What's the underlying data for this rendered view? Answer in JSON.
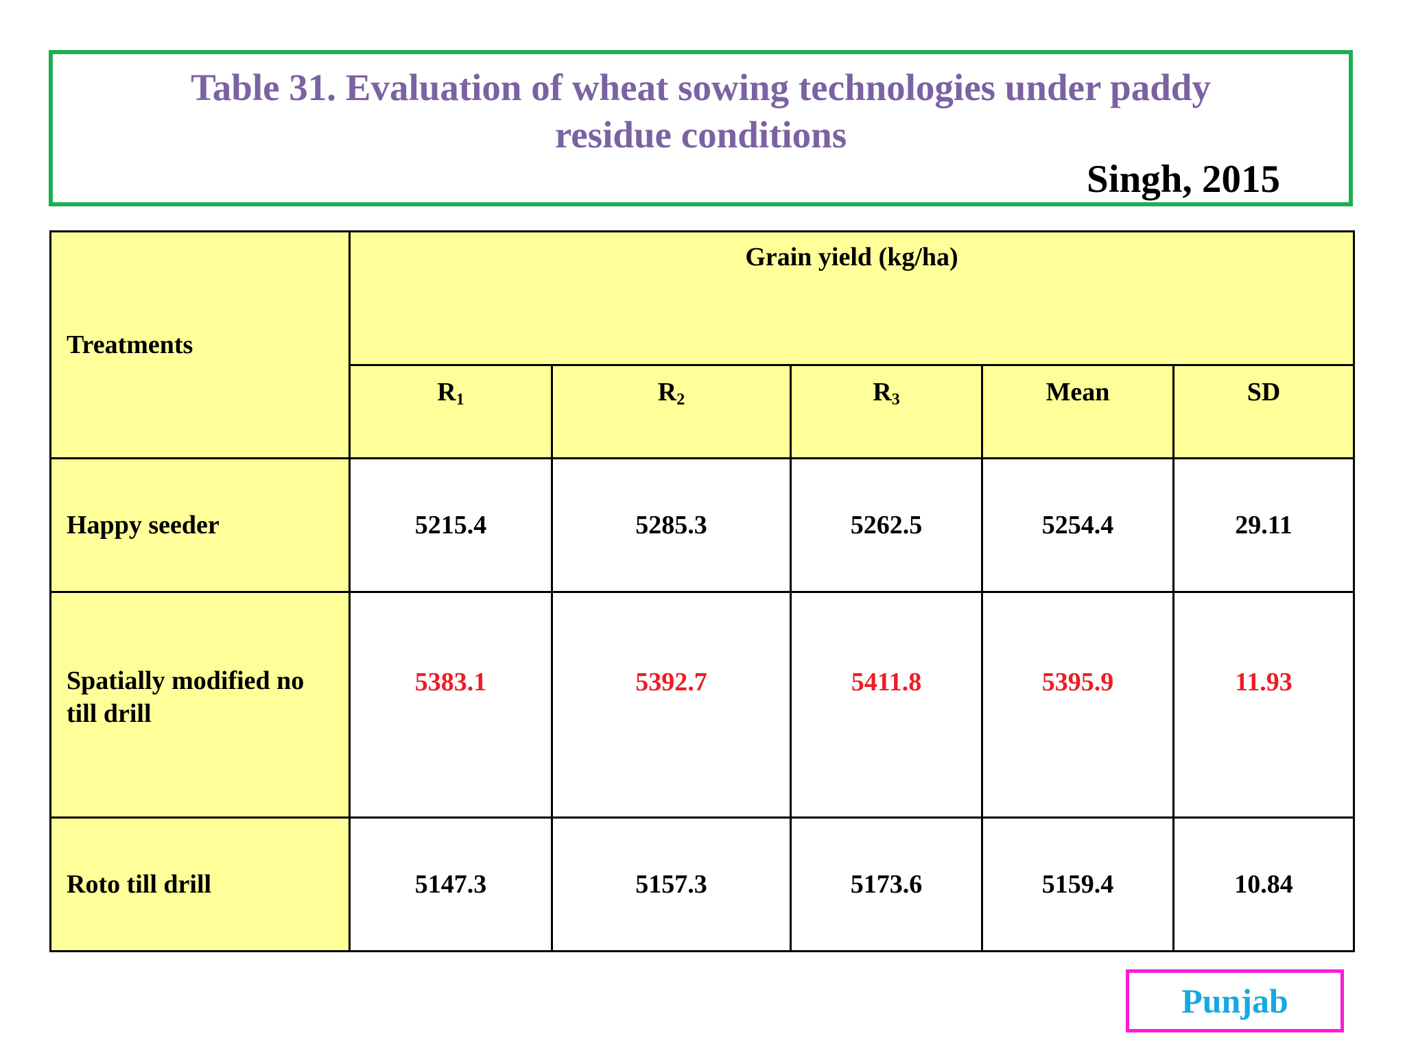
{
  "title": {
    "line1": "Table 31. Evaluation of wheat sowing technologies under paddy",
    "line2": "residue conditions",
    "citation": "Singh, 2015"
  },
  "table": {
    "treatments_header": "Treatments",
    "group_header": "Grain yield (kg/ha)",
    "columns": [
      {
        "base": "R",
        "sub": "1"
      },
      {
        "base": "R",
        "sub": "2"
      },
      {
        "base": "R",
        "sub": "3"
      },
      {
        "base": "Mean",
        "sub": ""
      },
      {
        "base": "SD",
        "sub": ""
      }
    ],
    "rows": [
      {
        "label": "Happy seeder",
        "values": [
          "5215.4",
          "5285.3",
          "5262.5",
          "5254.4",
          "29.11"
        ],
        "highlight": false
      },
      {
        "label_line1": "Spatially modified no",
        "label_line2": "till drill",
        "values": [
          "5383.1",
          "5392.7",
          "5411.8",
          "5395.9",
          "11.93"
        ],
        "highlight": true
      },
      {
        "label": "Roto till drill",
        "values": [
          "5147.3",
          "5157.3",
          "5173.6",
          "5159.4",
          "10.84"
        ],
        "highlight": false
      }
    ],
    "colors": {
      "header_bg": "#ffff99",
      "highlight_text": "#ee1c24"
    }
  },
  "region": "Punjab",
  "colors": {
    "title_text": "#7b62a3",
    "title_border": "#1db050",
    "region_border": "#ff1ad9",
    "region_text": "#17a9e1"
  }
}
